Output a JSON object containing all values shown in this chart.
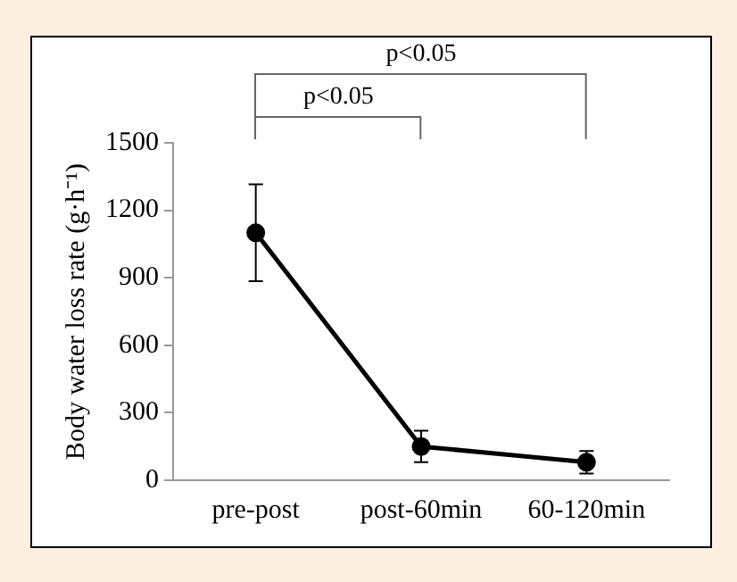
{
  "chart_data": {
    "type": "line",
    "ylabel": "Body water loss rate (g·h⁻¹)",
    "categories": [
      "pre-post",
      "post-60min",
      "60-120min"
    ],
    "series": [
      {
        "color": "#000000",
        "values": [
          1100,
          150,
          80
        ],
        "errors": [
          215,
          70,
          50
        ]
      }
    ],
    "ylim": [
      0,
      1500
    ],
    "yticks": [
      0,
      300,
      600,
      900,
      1200,
      1500
    ],
    "grid": false,
    "legend": false,
    "marker": "circle",
    "line_style": "solid",
    "annotations": [
      "p<0.05",
      "p<0.05"
    ]
  }
}
